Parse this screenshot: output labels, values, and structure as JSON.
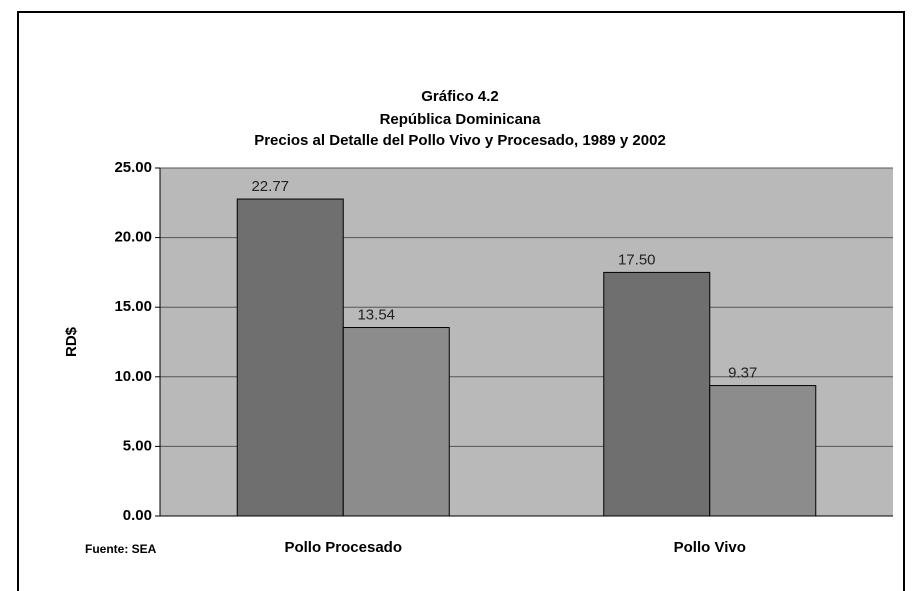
{
  "chart_data": {
    "type": "bar",
    "title": [
      "Gráfico 4.2",
      "República Dominicana",
      "Precios al Detalle del Pollo Vivo y Procesado, 1989 y 2002"
    ],
    "y_label": "RD$",
    "source": "Fuente: SEA",
    "categories": [
      "Pollo Procesado",
      "Pollo Vivo"
    ],
    "series": [
      {
        "color": "#6f6f6f",
        "values": [
          22.77,
          17.5
        ],
        "value_labels": [
          "22.77",
          "17.50"
        ]
      },
      {
        "color": "#8c8c8c",
        "values": [
          13.54,
          9.37
        ],
        "value_labels": [
          "13.54",
          "9.37"
        ]
      }
    ],
    "ylim": [
      0,
      25
    ],
    "yticks": [
      {
        "value": 0,
        "label": "0.00"
      },
      {
        "value": 5,
        "label": "5.00"
      },
      {
        "value": 10,
        "label": "10.00"
      },
      {
        "value": 15,
        "label": "15.00"
      },
      {
        "value": 20,
        "label": "20.00"
      },
      {
        "value": 25,
        "label": "25.00"
      }
    ],
    "grid": true
  }
}
